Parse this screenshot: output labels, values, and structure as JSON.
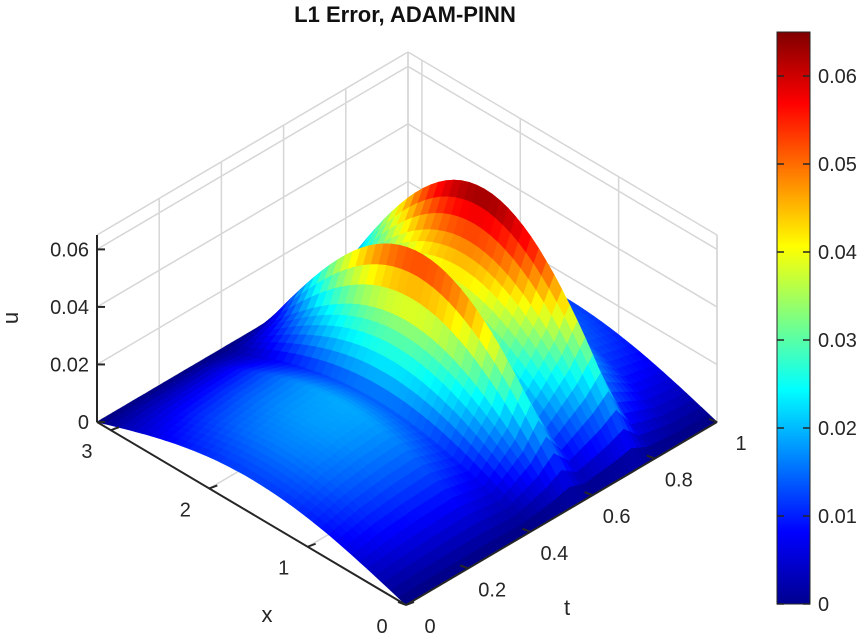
{
  "chart_data": {
    "type": "surface",
    "title": "L1 Error, ADAM-PINN",
    "xlabel": "x",
    "ylabel": "t",
    "zlabel": "u",
    "x_ticks": [
      "0",
      "1",
      "2",
      "3"
    ],
    "t_ticks": [
      "0",
      "0.2",
      "0.4",
      "0.6",
      "0.8",
      "1"
    ],
    "z_ticks": [
      "0",
      "0.02",
      "0.04",
      "0.06"
    ],
    "xlim": [
      0,
      3.14159
    ],
    "tlim": [
      0,
      1
    ],
    "zlim": [
      0,
      0.065
    ],
    "grid": true,
    "colormap": "jet",
    "colorbar": {
      "ticks": [
        "0",
        "0.01",
        "0.02",
        "0.03",
        "0.04",
        "0.05",
        "0.06"
      ],
      "range": [
        0,
        0.065
      ],
      "placement": "right"
    },
    "surface_description": "Error magnitude |u(x,t)| approx sin(x) * A(t); humps along t with peaks near t=0.55 (0.055) and t=0.75 (0.065), low lobes elsewhere.",
    "t_profile": {
      "t": [
        0.0,
        0.1,
        0.2,
        0.3,
        0.4,
        0.5,
        0.55,
        0.6,
        0.7,
        0.75,
        0.8,
        0.9,
        1.0
      ],
      "amp": [
        0.012,
        0.016,
        0.018,
        0.019,
        0.014,
        0.035,
        0.055,
        0.03,
        0.05,
        0.065,
        0.03,
        0.016,
        0.012
      ]
    }
  }
}
